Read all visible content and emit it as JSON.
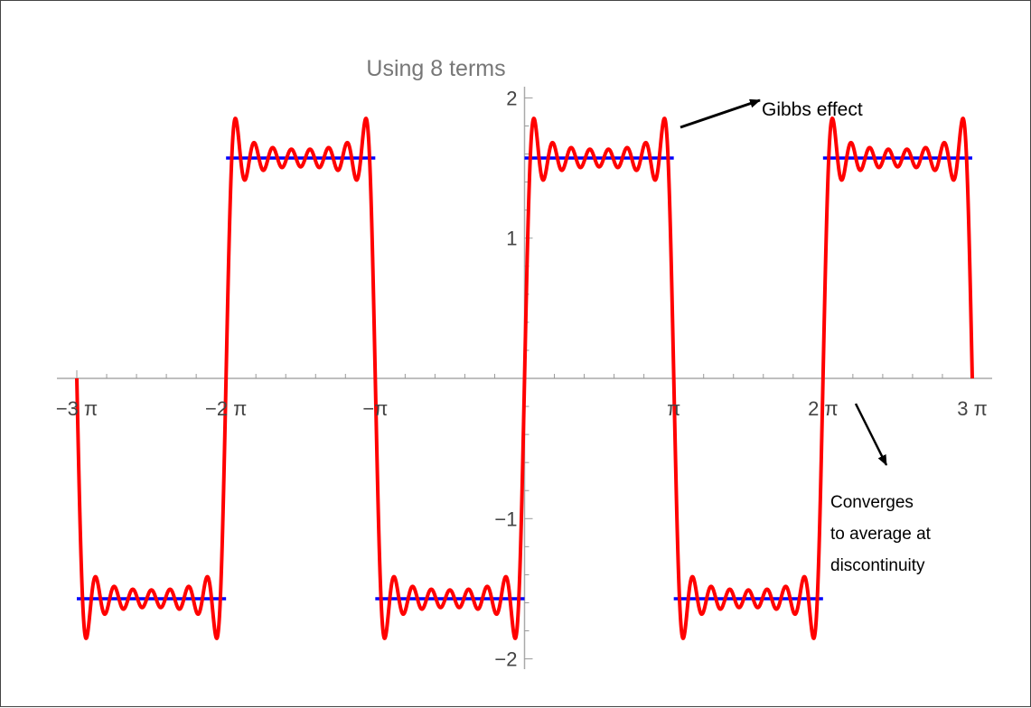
{
  "chart_data": {
    "type": "line",
    "title": "Using 8 terms",
    "xlabel": "",
    "ylabel": "",
    "xlim": [
      -9.4248,
      9.4248
    ],
    "ylim": [
      -2.05,
      2.05
    ],
    "x_ticks": [
      {
        "value": -9.4248,
        "label": "−3 π"
      },
      {
        "value": -6.2832,
        "label": "−2 π"
      },
      {
        "value": -3.1416,
        "label": "−π"
      },
      {
        "value": 3.1416,
        "label": "π"
      },
      {
        "value": 6.2832,
        "label": "2 π"
      },
      {
        "value": 9.4248,
        "label": "3 π"
      }
    ],
    "y_ticks": [
      {
        "value": -2,
        "label": "−2"
      },
      {
        "value": -1,
        "label": "−1"
      },
      {
        "value": 1,
        "label": "1"
      },
      {
        "value": 2,
        "label": "2"
      }
    ],
    "grid": false,
    "series": [
      {
        "kind": "fourier-partial-sum",
        "function": "square wave of height π/2, period 2π",
        "terms": 8,
        "amplitude": 1.5708,
        "x_range": [
          -9.4248,
          9.4248
        ],
        "color": "#ff0000"
      },
      {
        "kind": "step",
        "segments": [
          {
            "x": [
              -6.2832,
              -3.1416
            ],
            "y": 1.5708
          },
          {
            "x": [
              0,
              3.1416
            ],
            "y": 1.5708
          },
          {
            "x": [
              6.2832,
              9.4248
            ],
            "y": 1.5708
          },
          {
            "x": [
              -9.4248,
              -6.2832
            ],
            "y": -1.5708
          },
          {
            "x": [
              -3.1416,
              0
            ],
            "y": -1.5708
          },
          {
            "x": [
              3.1416,
              6.2832
            ],
            "y": -1.5708
          }
        ],
        "color": "#0000ff"
      }
    ],
    "annotations": [
      {
        "text": "Gibbs effect",
        "points_to": {
          "x": 3.1,
          "y": 1.8
        }
      },
      {
        "lines": [
          "Converges",
          "to average at",
          "discontinuity"
        ],
        "points_to": {
          "x": 6.3,
          "y": 0
        }
      }
    ]
  }
}
